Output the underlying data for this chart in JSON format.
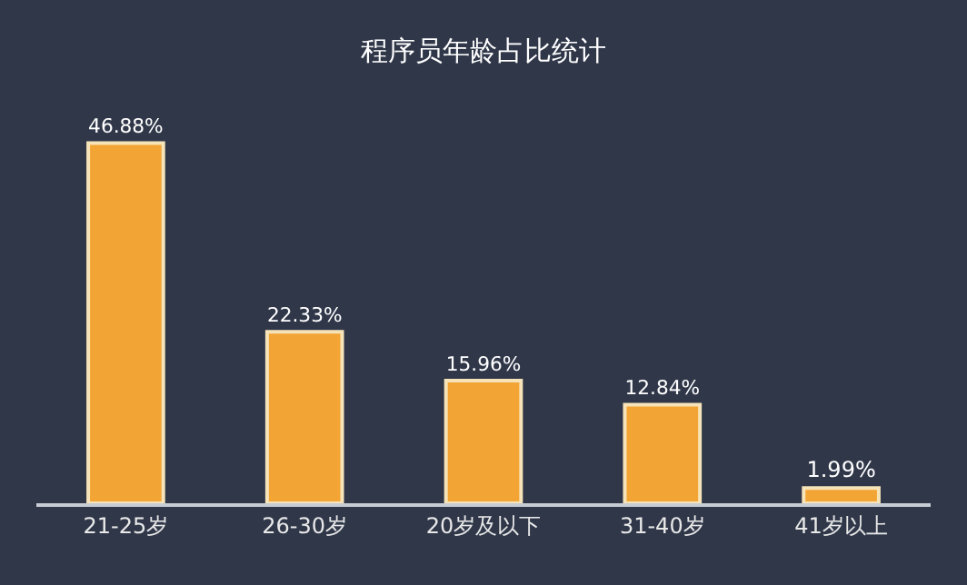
{
  "chart_data": {
    "type": "bar",
    "title": "程序员年龄占比统计",
    "categories": [
      "21-25岁",
      "26-30岁",
      "20岁及以下",
      "31-40岁",
      "41岁以上"
    ],
    "values": [
      46.88,
      22.33,
      15.96,
      12.84,
      1.99
    ],
    "value_labels": [
      "46.88%",
      "22.33%",
      "15.96%",
      "12.84%",
      "1.99%"
    ],
    "color": "#f2a534",
    "grid": false,
    "legend": false
  }
}
